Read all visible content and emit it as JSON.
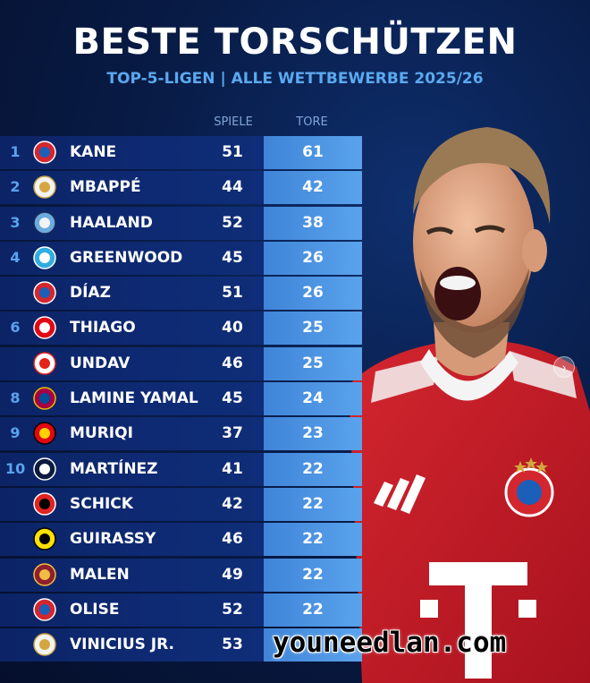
{
  "header": {
    "title": "BESTE TORSCHÜTZEN",
    "subtitle": "TOP-5-LIGEN | ALLE WETTBEWERBE 2025/26"
  },
  "columns": {
    "games": "SPIELE",
    "goals": "TORE"
  },
  "colors": {
    "accent": "#5aa3ec",
    "background": "#081c47",
    "row": "#0e2a73",
    "goals_cell": "#4a92e0"
  },
  "players": [
    {
      "rank": "1",
      "name": "KANE",
      "games": "51",
      "goals": "61",
      "club_icon": "bayern-logo"
    },
    {
      "rank": "2",
      "name": "MBAPPÉ",
      "games": "44",
      "goals": "42",
      "club_icon": "real-madrid-logo"
    },
    {
      "rank": "3",
      "name": "HAALAND",
      "games": "52",
      "goals": "38",
      "club_icon": "man-city-logo"
    },
    {
      "rank": "4",
      "name": "GREENWOOD",
      "games": "45",
      "goals": "26",
      "club_icon": "marseille-logo"
    },
    {
      "rank": "",
      "name": "DÍAZ",
      "games": "51",
      "goals": "26",
      "club_icon": "bayern-logo"
    },
    {
      "rank": "6",
      "name": "THIAGO",
      "games": "40",
      "goals": "25",
      "club_icon": "brentford-logo"
    },
    {
      "rank": "",
      "name": "UNDAV",
      "games": "46",
      "goals": "25",
      "club_icon": "stuttgart-logo"
    },
    {
      "rank": "8",
      "name": "LAMINE YAMAL",
      "games": "45",
      "goals": "24",
      "club_icon": "barcelona-logo"
    },
    {
      "rank": "9",
      "name": "MURIQI",
      "games": "37",
      "goals": "23",
      "club_icon": "mallorca-logo"
    },
    {
      "rank": "10",
      "name": "MARTÍNEZ",
      "games": "41",
      "goals": "22",
      "club_icon": "inter-logo"
    },
    {
      "rank": "",
      "name": "SCHICK",
      "games": "42",
      "goals": "22",
      "club_icon": "leverkusen-logo"
    },
    {
      "rank": "",
      "name": "GUIRASSY",
      "games": "46",
      "goals": "22",
      "club_icon": "dortmund-logo"
    },
    {
      "rank": "",
      "name": "MALEN",
      "games": "49",
      "goals": "22",
      "club_icon": "roma-logo"
    },
    {
      "rank": "",
      "name": "OLISE",
      "games": "52",
      "goals": "22",
      "club_icon": "bayern-logo"
    },
    {
      "rank": "",
      "name": "VINICIUS JR.",
      "games": "53",
      "goals": "",
      "club_icon": "real-madrid-logo"
    }
  ],
  "watermark": "youneedlan.com"
}
